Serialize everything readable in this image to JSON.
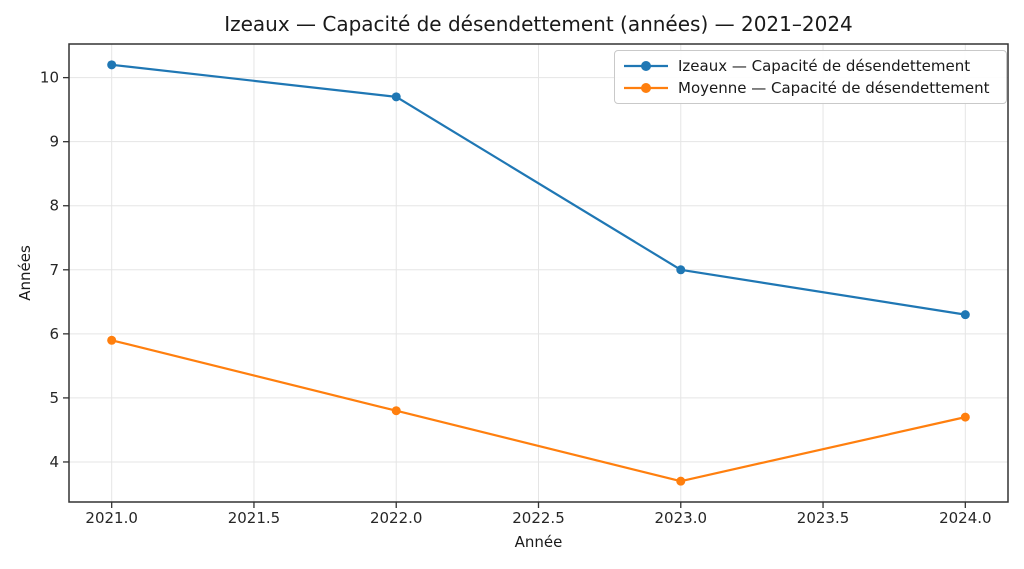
{
  "chart_data": {
    "type": "line",
    "title": "Izeaux — Capacité de désendettement (années) — 2021–2024",
    "xlabel": "Année",
    "ylabel": "Années",
    "x": [
      2021,
      2022,
      2023,
      2024
    ],
    "series": [
      {
        "name": "Izeaux — Capacité de désendettement",
        "color": "#1f77b4",
        "values": [
          10.2,
          9.7,
          7.0,
          6.3
        ]
      },
      {
        "name": "Moyenne — Capacité de désendettement",
        "color": "#ff7f0e",
        "values": [
          5.9,
          4.8,
          3.7,
          4.7
        ]
      }
    ],
    "xticks": {
      "values": [
        2021.0,
        2021.5,
        2022.0,
        2022.5,
        2023.0,
        2023.5,
        2024.0
      ],
      "labels": [
        "2021.0",
        "2021.5",
        "2022.0",
        "2022.5",
        "2023.0",
        "2023.5",
        "2024.0"
      ]
    },
    "yticks": {
      "values": [
        4,
        5,
        6,
        7,
        8,
        9,
        10
      ],
      "labels": [
        "4",
        "5",
        "6",
        "7",
        "8",
        "9",
        "10"
      ]
    },
    "xlim": [
      2020.85,
      2024.15
    ],
    "ylim": [
      3.375,
      10.525
    ],
    "grid": true,
    "legend_position": "upper right",
    "styles": {
      "grid_color": "#e5e5e5",
      "spine_color": "#333333",
      "tick_color": "#262626",
      "line_width": 2.2,
      "marker_radius": 4.5
    }
  }
}
